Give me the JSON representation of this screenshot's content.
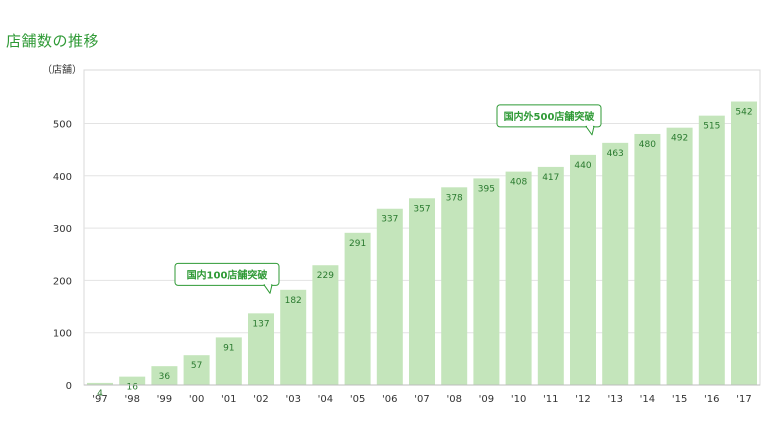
{
  "title": "店舗数の推移",
  "chart_data": {
    "type": "bar",
    "unit_label": "（店舗）",
    "categories": [
      "'97",
      "'98",
      "'99",
      "'00",
      "'01",
      "'02",
      "'03",
      "'04",
      "'05",
      "'06",
      "'07",
      "'08",
      "'09",
      "'10",
      "'11",
      "'12",
      "'13",
      "'14",
      "'15",
      "'16",
      "'17"
    ],
    "values": [
      4,
      16,
      36,
      57,
      91,
      137,
      182,
      229,
      291,
      337,
      357,
      378,
      395,
      408,
      417,
      440,
      463,
      480,
      492,
      515,
      542
    ],
    "ylim": [
      0,
      600
    ],
    "yticks": [
      0,
      100,
      200,
      300,
      400,
      500
    ],
    "grid": true,
    "colors": {
      "bar": "#c4e5bb",
      "bar_label": "#2a7a2f",
      "accent": "#2f9a36",
      "grid": "#e3e3e3"
    },
    "annotations": [
      {
        "text": "国内100店舗突破",
        "category": "'02"
      },
      {
        "text": "国内外500店舗突破",
        "category": "'12"
      }
    ]
  }
}
